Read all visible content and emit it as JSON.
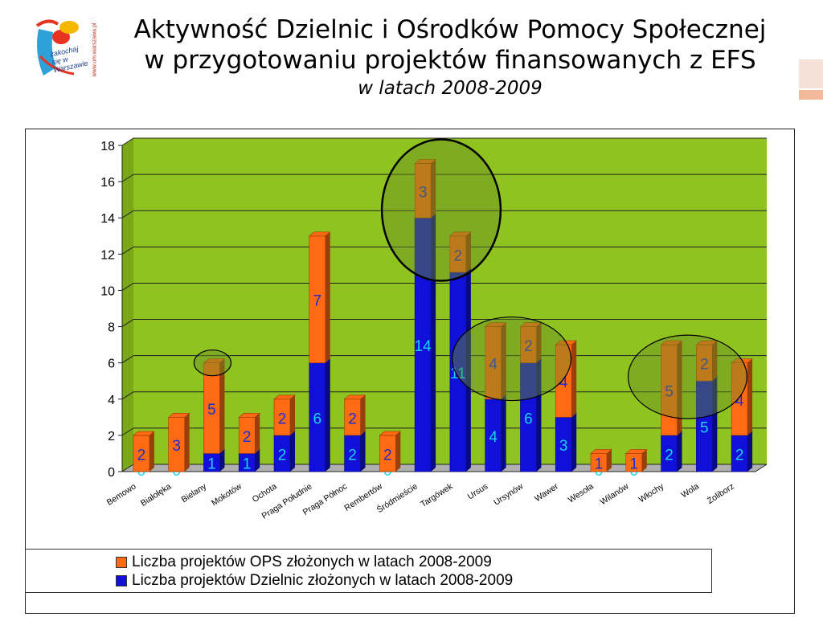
{
  "header": {
    "title_line1": "Aktywność Dzielnic i Ośrodków Pomocy Społecznej",
    "title_line2": "w przygotowaniu projektów finansowanych z EFS",
    "title_line3": "w latach 2008-2009",
    "logo_text": "zakochaj się w Warszawie",
    "logo_url": "www.um.warszawa.pl"
  },
  "colors": {
    "plot_bg": "#8fc31f",
    "ops": "#ff6a13",
    "dzielnice": "#1010d8",
    "grid": "#222222",
    "ellipse_fill": "#6b8e23"
  },
  "chart_data": {
    "type": "bar",
    "stacked": true,
    "categories": [
      "Bemowo",
      "Białołęka",
      "Bielany",
      "Mokotów",
      "Ochota",
      "Praga Południe",
      "Praga Północ",
      "Rembertów",
      "Śródmieście",
      "Targówek",
      "Ursus",
      "Ursynów",
      "Wawer",
      "Wesoła",
      "Wilanów",
      "Włochy",
      "Wola",
      "Żoliborz"
    ],
    "series": [
      {
        "name": "Liczba projektów Dzielnic złożonych w latach 2008-2009",
        "values": [
          0,
          0,
          1,
          1,
          2,
          6,
          2,
          0,
          14,
          11,
          4,
          6,
          3,
          0,
          0,
          2,
          5,
          2
        ]
      },
      {
        "name": "Liczba projektów OPS złożonych w latach 2008-2009",
        "values": [
          2,
          3,
          5,
          2,
          2,
          7,
          2,
          2,
          3,
          2,
          4,
          2,
          4,
          1,
          1,
          5,
          2,
          4
        ]
      }
    ],
    "ylim": [
      0,
      18
    ],
    "yticks": [
      0,
      2,
      4,
      6,
      8,
      10,
      12,
      14,
      16,
      18
    ],
    "grid": true,
    "legend_position": "bottom",
    "highlighted_groups": [
      [
        "Bielany"
      ],
      [
        "Śródmieście",
        "Targówek"
      ],
      [
        "Ursus",
        "Ursynów"
      ],
      [
        "Włochy",
        "Wola"
      ]
    ]
  }
}
